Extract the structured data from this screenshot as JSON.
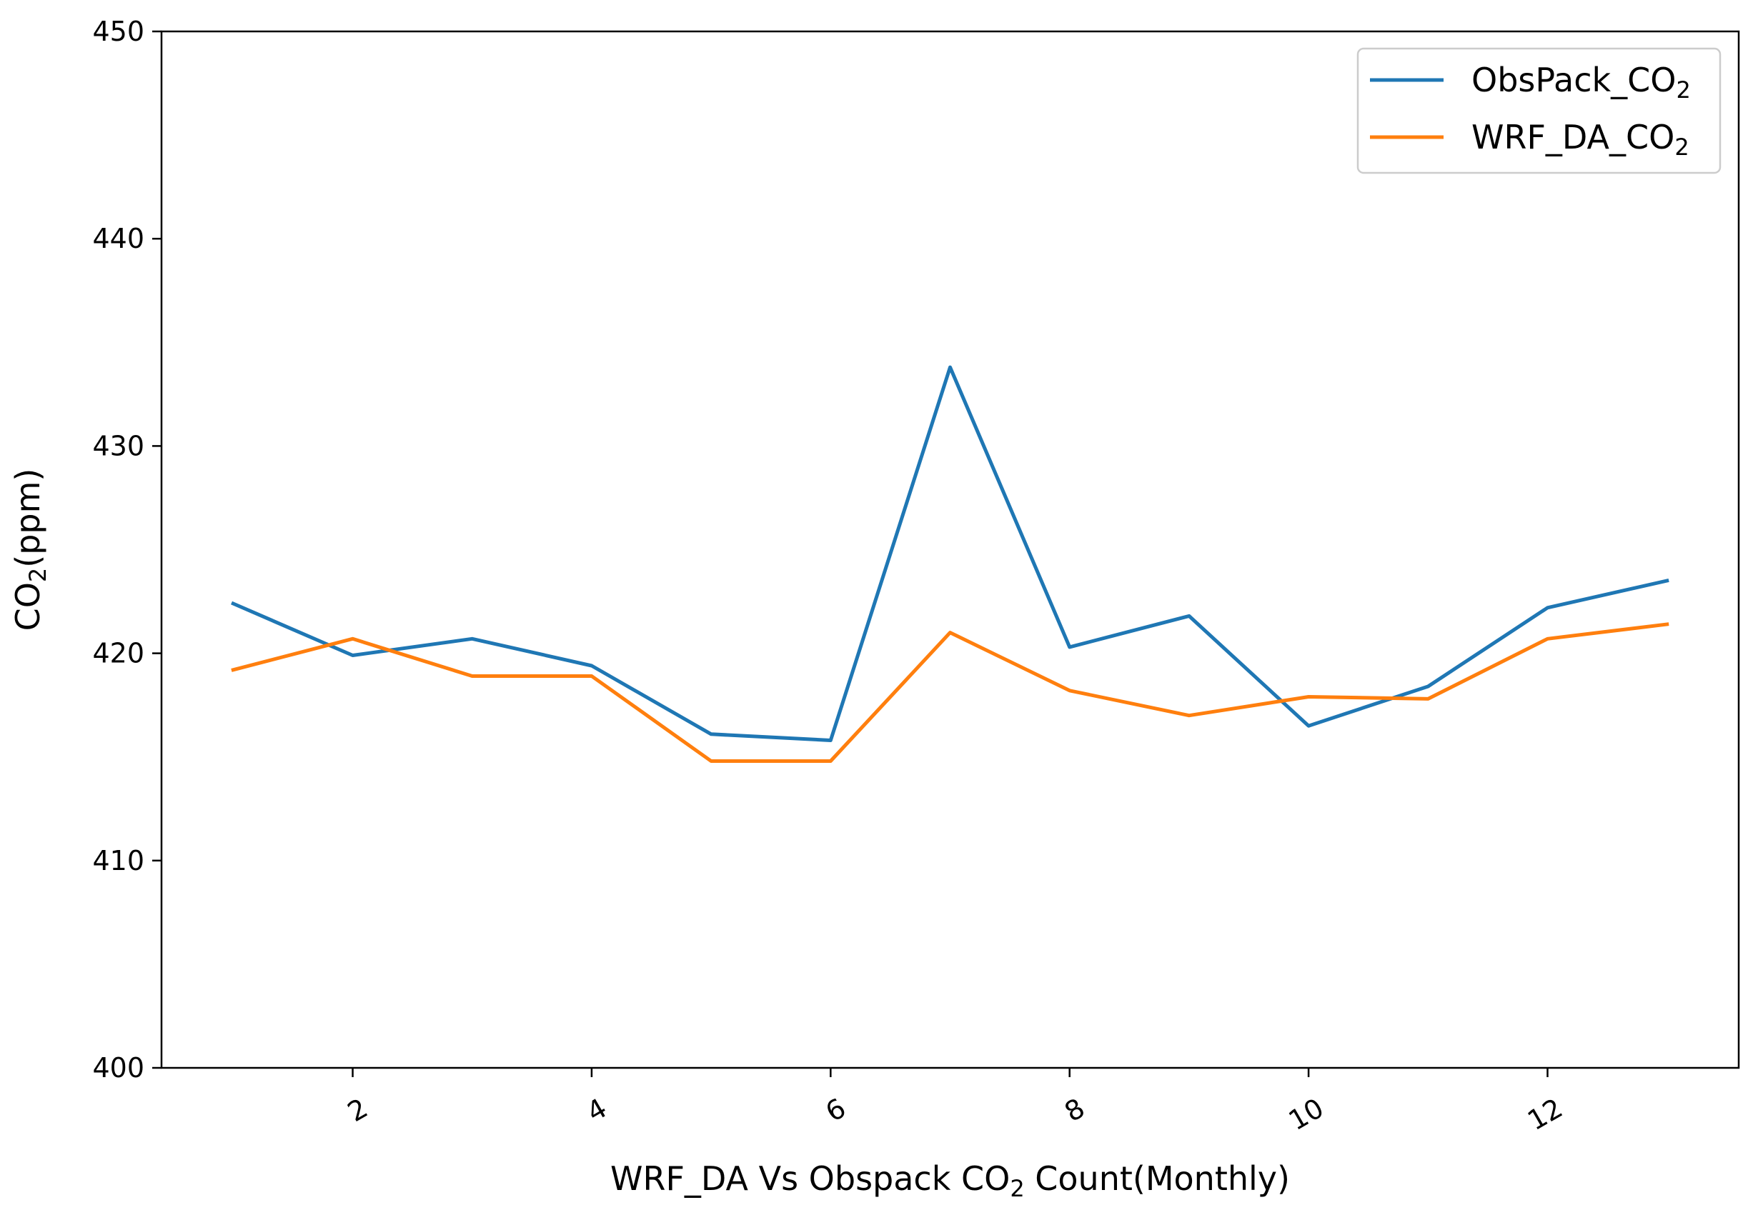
{
  "chart_data": {
    "type": "line",
    "title": "",
    "xlabel": {
      "text": "WRF_DA Vs Obspack CO",
      "sub": "2",
      "suffix": " Count(Monthly)"
    },
    "ylabel": {
      "text": "CO",
      "sub": "2",
      "suffix": "(ppm)"
    },
    "xlim": [
      0.4,
      13.6
    ],
    "ylim": [
      400,
      450
    ],
    "xticks": [
      2,
      4,
      6,
      8,
      10,
      12
    ],
    "yticks": [
      400,
      410,
      420,
      430,
      440,
      450
    ],
    "x": [
      1,
      2,
      3,
      4,
      5,
      6,
      7,
      8,
      9,
      10,
      11,
      12,
      13
    ],
    "series": [
      {
        "name": "ObsPack_CO",
        "name_sub": "2",
        "color": "#1f77b4",
        "values": [
          422.4,
          419.9,
          420.7,
          419.4,
          416.1,
          415.8,
          433.8,
          420.3,
          421.8,
          416.5,
          418.4,
          422.2,
          423.5
        ]
      },
      {
        "name": "WRF_DA_CO",
        "name_sub": "2",
        "color": "#ff7f0e",
        "values": [
          419.2,
          420.7,
          418.9,
          418.9,
          414.8,
          414.8,
          421.0,
          418.2,
          417.0,
          417.9,
          417.8,
          420.7,
          421.4
        ]
      }
    ],
    "legend_position": "top-right",
    "grid": false
  }
}
